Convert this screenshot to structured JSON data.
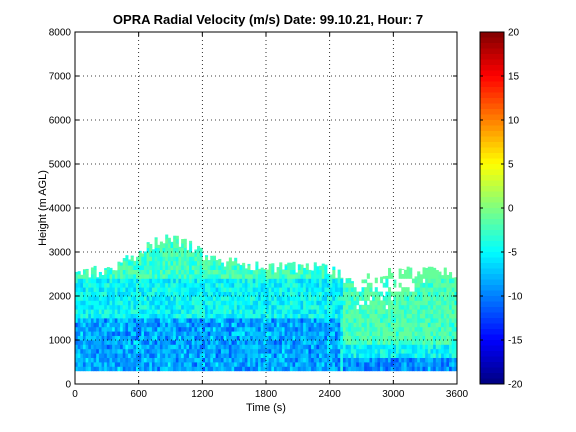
{
  "chart_data": {
    "type": "heatmap",
    "title": "OPRA Radial Velocity (m/s)  Date: 99.10.21, Hour: 7",
    "xlabel": "Time (s)",
    "ylabel": "Height (m AGL)",
    "xlim": [
      0,
      3600
    ],
    "ylim": [
      0,
      8000
    ],
    "x_ticks": [
      "0",
      "600",
      "1200",
      "1800",
      "2400",
      "3000",
      "3600"
    ],
    "y_ticks": [
      "0",
      "1000",
      "2000",
      "3000",
      "4000",
      "5000",
      "6000",
      "7000",
      "8000"
    ],
    "grid": true,
    "colorbar": {
      "label": "",
      "range": [
        -20,
        20
      ],
      "ticks": [
        "20",
        "15",
        "10",
        "5",
        "0",
        "-5",
        "-10",
        "-15",
        "-20"
      ],
      "colormap": "jet"
    },
    "data_summary": {
      "x_extent": [
        0,
        3600
      ],
      "y_base": 300,
      "echo_top_profile": [
        {
          "x": 0,
          "top": 2550
        },
        {
          "x": 300,
          "top": 2550
        },
        {
          "x": 600,
          "top": 3000
        },
        {
          "x": 800,
          "top": 3250
        },
        {
          "x": 900,
          "top": 3350
        },
        {
          "x": 1000,
          "top": 3200
        },
        {
          "x": 1100,
          "top": 3150
        },
        {
          "x": 1300,
          "top": 2800
        },
        {
          "x": 1600,
          "top": 2700
        },
        {
          "x": 2000,
          "top": 2650
        },
        {
          "x": 2400,
          "top": 2600
        },
        {
          "x": 2600,
          "top": 2300
        },
        {
          "x": 2800,
          "top": 2450
        },
        {
          "x": 3000,
          "top": 2500
        },
        {
          "x": 3300,
          "top": 2550
        },
        {
          "x": 3600,
          "top": 2550
        }
      ],
      "velocity_range": [
        -12,
        -1
      ],
      "dominant_velocity": -5
    }
  }
}
